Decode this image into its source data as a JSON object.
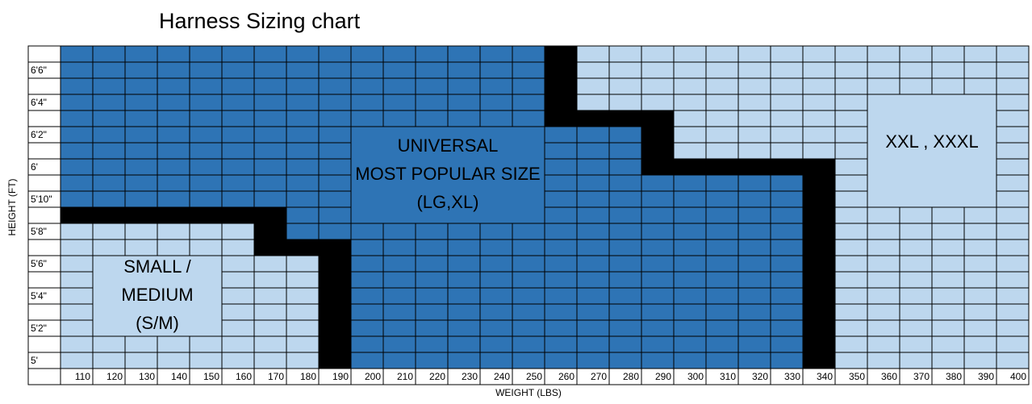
{
  "title": "Harness Sizing chart",
  "x_axis_title": "WEIGHT (LBS)",
  "y_axis_title": "HEIGHT (FT)",
  "weights": [
    110,
    120,
    130,
    140,
    150,
    160,
    170,
    180,
    190,
    200,
    210,
    220,
    230,
    240,
    250,
    260,
    270,
    280,
    290,
    300,
    310,
    320,
    330,
    340,
    350,
    360,
    370,
    380,
    390,
    400
  ],
  "heights": [
    "6'6\"",
    "6'4\"",
    "6'2\"",
    "6'",
    "5'10\"",
    "5'8\"",
    "5'6\"",
    "5'4\"",
    "5'2\"",
    "5'"
  ],
  "regions": [
    {
      "lines": [
        "UNIVERSAL",
        "MOST POPULAR SIZE",
        "(LG,XL)"
      ]
    },
    {
      "lines": [
        "SMALL /",
        "MEDIUM",
        "(S/M)"
      ]
    },
    {
      "lines": [
        "XXL , XXXL"
      ]
    }
  ]
}
